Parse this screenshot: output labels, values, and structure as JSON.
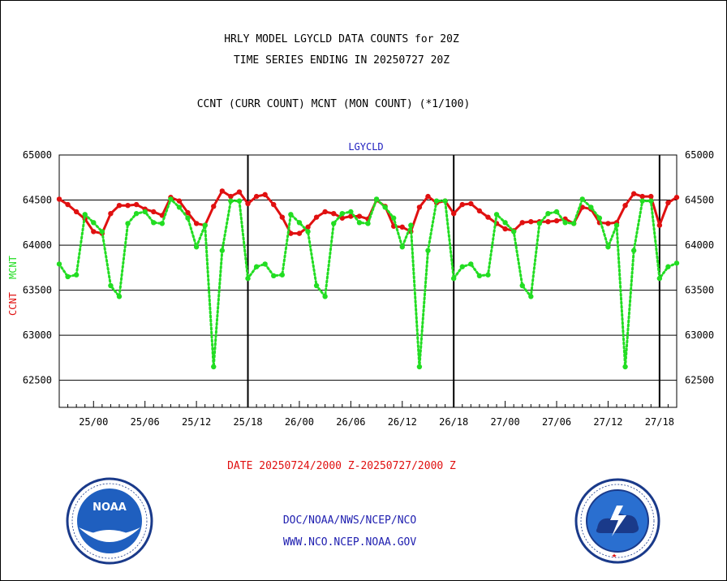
{
  "header": {
    "title_line1": "HRLY MODEL LGYCLD DATA COUNTS for 20Z",
    "title_line2": "TIME SERIES ENDING IN 20250727 20Z",
    "subtitle": "CCNT (CURR COUNT) MCNT (MON COUNT) (*1/100)"
  },
  "footer": {
    "date_range": "DATE 20250724/2000 Z-20250727/2000 Z",
    "link1": "DOC/NOAA/NWS/NCEP/NCO",
    "link2": "WWW.NCO.NCEP.NOAA.GOV"
  },
  "logos": {
    "left_seal": "NOAA",
    "right_seal": "NATIONAL WEATHER SERVICE"
  },
  "colors": {
    "ccnt": "#e01010",
    "mcnt": "#22dd22",
    "plot_label": "#2020c0",
    "date_text": "#e01010",
    "link_text": "#2020b0"
  },
  "chart_data": {
    "type": "line",
    "title": "LGYCLD",
    "ylabel_left_parts": [
      "CCNT",
      "MCNT"
    ],
    "ylim": [
      62200,
      65000
    ],
    "yticks": [
      "62500",
      "63000",
      "63500",
      "64000",
      "64500",
      "65000"
    ],
    "ytick_values": [
      62500,
      63000,
      63500,
      64000,
      64500,
      65000
    ],
    "xlim": [
      0,
      72
    ],
    "xtick_labels": [
      "25/00",
      "25/06",
      "25/12",
      "25/18",
      "26/00",
      "26/06",
      "26/12",
      "26/18",
      "27/00",
      "27/06",
      "27/12",
      "27/18"
    ],
    "xtick_hours": [
      4,
      10,
      16,
      22,
      28,
      34,
      40,
      46,
      52,
      58,
      64,
      70
    ],
    "day_separators_hours": [
      22,
      46,
      70
    ],
    "grid": "horizontal",
    "series": [
      {
        "name": "CCNT",
        "style": "solid",
        "values": [
          64510,
          64450,
          64370,
          64290,
          64150,
          64130,
          64350,
          64440,
          64440,
          64450,
          64400,
          64370,
          64330,
          64530,
          64490,
          64360,
          64240,
          64220,
          64430,
          64600,
          64540,
          64590,
          64460,
          64540,
          64560,
          64450,
          64310,
          64130,
          64130,
          64200,
          64310,
          64370,
          64350,
          64300,
          64320,
          64320,
          64290,
          64500,
          64430,
          64210,
          64200,
          64150,
          64420,
          64540,
          64470,
          64490,
          64350,
          64450,
          64460,
          64380,
          64310,
          64240,
          64180,
          64160,
          64250,
          64260,
          64260,
          64260,
          64270,
          64290,
          64240,
          64420,
          64400,
          64250,
          64240,
          64250,
          64440,
          64570,
          64540,
          64540,
          64220,
          64470,
          64530
        ]
      },
      {
        "name": "MCNT",
        "style": "dotted",
        "values": [
          63790,
          63650,
          63670,
          64340,
          64250,
          64150,
          63550,
          63430,
          64240,
          64350,
          64370,
          64250,
          64240,
          64510,
          64420,
          64300,
          63980,
          64220,
          62650,
          63940,
          64490,
          64490,
          63630,
          63760,
          63790,
          63660,
          63670,
          64340,
          64250,
          64150,
          63550,
          63430,
          64240,
          64350,
          64370,
          64250,
          64240,
          64510,
          64420,
          64300,
          63980,
          64220,
          62650,
          63940,
          64490,
          64490,
          63630,
          63760,
          63790,
          63660,
          63670,
          64340,
          64250,
          64150,
          63550,
          63430,
          64240,
          64350,
          64370,
          64250,
          64240,
          64510,
          64420,
          64300,
          63980,
          64220,
          62650,
          63940,
          64490,
          64490,
          63630,
          63760,
          63800
        ]
      }
    ]
  }
}
